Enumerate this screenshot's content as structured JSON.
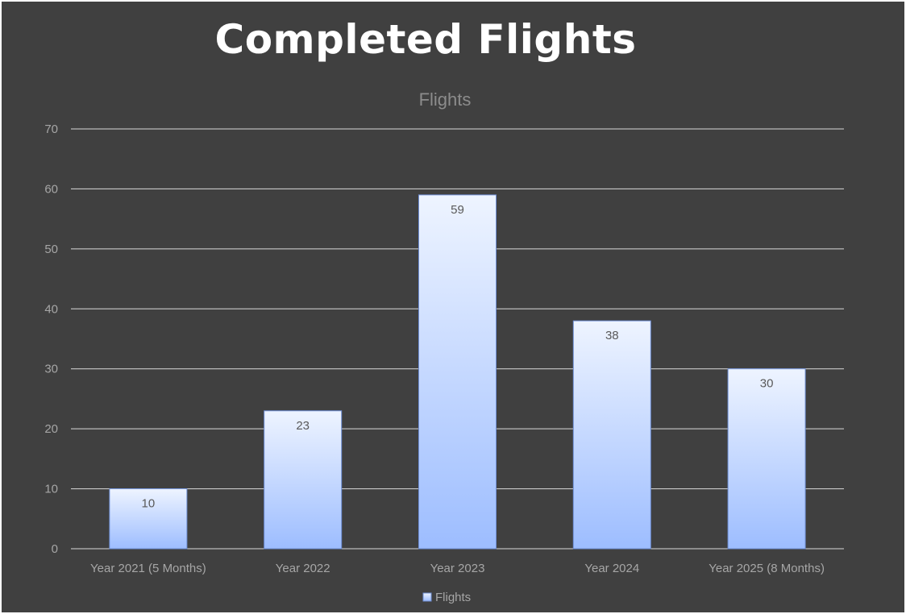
{
  "page": {
    "title": "Completed Flights"
  },
  "chart_data": {
    "type": "bar",
    "title": "Flights",
    "categories": [
      "Year 2021 (5 Months)",
      "Year 2022",
      "Year 2023",
      "Year 2024",
      "Year 2025 (8 Months)"
    ],
    "series": [
      {
        "name": "Flights",
        "values": [
          10,
          23,
          59,
          38,
          30
        ]
      }
    ],
    "ylim": [
      0,
      70
    ],
    "yticks": [
      0,
      10,
      20,
      30,
      40,
      50,
      60,
      70
    ],
    "grid": true,
    "data_labels": true,
    "legend": "bottom-center",
    "colors": {
      "background": "#404040",
      "gridline": "#d9d9d9",
      "bar_top": "#eef4ff",
      "bar_bottom": "#9dbdff",
      "bar_stroke": "#6f8fd6",
      "label_text": "#595959",
      "axis_text": "#a6a6a6",
      "chart_title": "#8c8c8c"
    }
  }
}
